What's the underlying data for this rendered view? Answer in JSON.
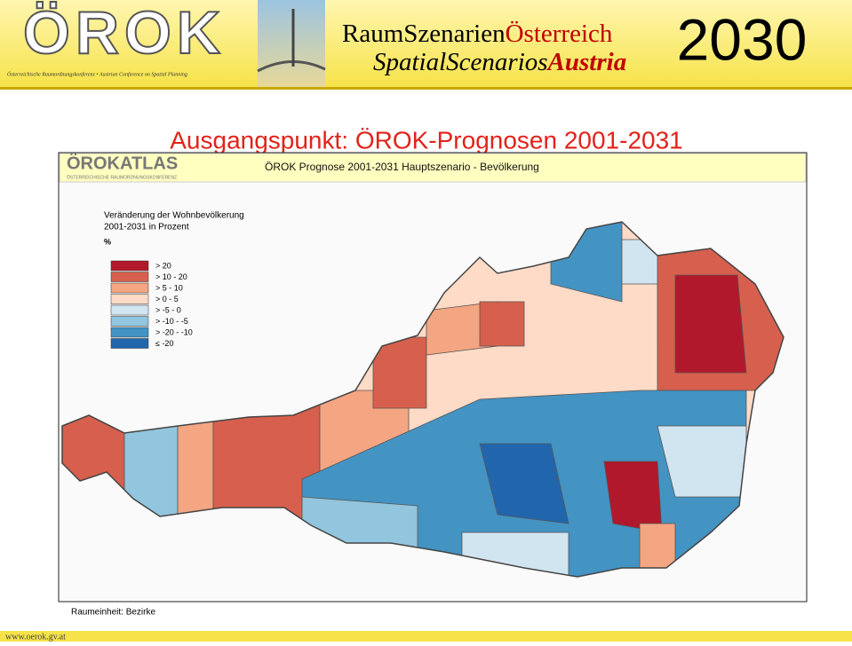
{
  "header": {
    "logo": "ÖROK",
    "logo_subtitle": "Österreichische Raumordnungskonferenz • Austrian Conference on Spatial Planning",
    "line1_a": "RaumSzenarien",
    "line1_b": "Österreich",
    "line2_a": "SpatialScenarios",
    "line2_b": "Austria",
    "year": "2030"
  },
  "title": "Ausgangspunkt: ÖROK-Prognosen 2001-2031",
  "map": {
    "brand": "ÖROKATLAS",
    "brand_subtitle": "ÖSTERREICHISCHE RAUMORDNUNGSKONFERENZ",
    "heading": "ÖROK Prognose 2001-2031 Hauptszenario - Bevölkerung",
    "legend": {
      "title_line1": "Veränderung der Wohnbevölkerung",
      "title_line2": "2001-2031 in Prozent",
      "unit": "%",
      "classes": [
        {
          "label": "> 20",
          "color": "#b2182b"
        },
        {
          "label": "> 10 - 20",
          "color": "#d6604d"
        },
        {
          "label": "> 5 - 10",
          "color": "#f4a582"
        },
        {
          "label": "> 0 - 5",
          "color": "#fddbc7"
        },
        {
          "label": "> -5 - 0",
          "color": "#d1e5f0"
        },
        {
          "label": "> -10 - -5",
          "color": "#92c5de"
        },
        {
          "label": "> -20 - -10",
          "color": "#4393c3"
        },
        {
          "label": "≤ -20",
          "color": "#2166ac"
        }
      ]
    },
    "unit_note": "Raumeinheit: Bezirke"
  },
  "footer": "www.oerok.gv.at"
}
